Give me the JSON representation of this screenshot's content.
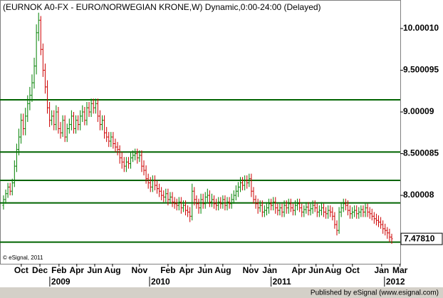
{
  "chart_data": {
    "type": "ohlc",
    "title": "(EURNOK A0-FX - EURO/NORWEGIAN KRONE,W) Dynamic,0:00-24:00 (Delayed)",
    "copyright": "© eSignal, 2011",
    "footer": "Published by eSignal (www.esignal.com)",
    "up_color": "#008000",
    "down_color": "#cc0000",
    "line_color": "#006400",
    "xlim": [
      -1.6,
      180.9
    ],
    "ylim": [
      7.18,
      10.342
    ],
    "yticks": [
      {
        "value": 10.0001,
        "label": "10.00010"
      },
      {
        "value": 9.500095,
        "label": "9.500095"
      },
      {
        "value": 9.00009,
        "label": "9.00009"
      },
      {
        "value": 8.500085,
        "label": "8.500085"
      },
      {
        "value": 8.00008,
        "label": "8.00008"
      }
    ],
    "last_price": {
      "value": 7.4781,
      "label": "7.47810"
    },
    "xticks": [
      {
        "value": 8.1,
        "label": "Oct"
      },
      {
        "value": 16.6,
        "label": "Dec"
      },
      {
        "value": 25.3,
        "label": "Feb"
      },
      {
        "value": 33.4,
        "label": "Apr"
      },
      {
        "value": 41.6,
        "label": "Jun"
      },
      {
        "value": 49.7,
        "label": "Aug"
      },
      {
        "value": 62,
        "label": "Nov"
      },
      {
        "value": 75,
        "label": "Feb"
      },
      {
        "value": 83.4,
        "label": "Apr"
      },
      {
        "value": 91.9,
        "label": "Jun"
      },
      {
        "value": 100,
        "label": "Aug"
      },
      {
        "value": 112.7,
        "label": "Nov"
      },
      {
        "value": 121.4,
        "label": "Jan"
      },
      {
        "value": 134.7,
        "label": "Apr"
      },
      {
        "value": 142.5,
        "label": "Jun"
      },
      {
        "value": 150.3,
        "label": "Aug"
      },
      {
        "value": 159.1,
        "label": "Oct"
      },
      {
        "value": 172.4,
        "label": "Jan"
      },
      {
        "value": 180.8,
        "label": "Mar"
      }
    ],
    "year_ticks": [
      {
        "value": 21.1,
        "label": "2009"
      },
      {
        "value": 66.6,
        "label": "2010"
      },
      {
        "value": 122,
        "label": "2011"
      },
      {
        "value": 173.7,
        "label": "2012"
      }
    ],
    "horizontal_lines": [
      9.146,
      8.52,
      8.18,
      7.91,
      7.44
    ],
    "open": [
      7.88,
      7.95,
      8.02,
      8.1,
      8.05,
      8.15,
      8.35,
      8.55,
      8.7,
      8.9,
      8.8,
      8.95,
      9.1,
      9.2,
      9.35,
      9.55,
      9.95,
      10.1,
      9.75,
      9.5,
      9.3,
      9.05,
      8.9,
      8.95,
      8.85,
      9.0,
      8.8,
      8.75,
      8.9,
      8.7,
      8.8,
      8.85,
      8.95,
      8.8,
      8.9,
      8.85,
      8.95,
      9.0,
      8.9,
      9.05,
      9.0,
      9.1,
      9.05,
      9.1,
      8.95,
      8.85,
      8.9,
      8.75,
      8.7,
      8.65,
      8.7,
      8.62,
      8.58,
      8.55,
      8.45,
      8.4,
      8.35,
      8.4,
      8.38,
      8.45,
      8.48,
      8.5,
      8.45,
      8.48,
      8.35,
      8.3,
      8.2,
      8.15,
      8.1,
      8.18,
      8.12,
      8.08,
      8.05,
      8.0,
      7.98,
      8.02,
      7.95,
      7.98,
      7.92,
      7.9,
      7.88,
      7.92,
      7.85,
      7.88,
      7.82,
      7.8,
      7.75,
      8.05,
      7.95,
      7.9,
      7.85,
      7.95,
      7.9,
      7.98,
      8.0,
      7.92,
      7.95,
      7.9,
      7.88,
      7.92,
      7.9,
      7.95,
      7.88,
      7.92,
      7.9,
      7.95,
      8.0,
      8.05,
      8.1,
      8.15,
      8.12,
      8.18,
      8.15,
      8.2,
      8.05,
      7.95,
      7.9,
      7.85,
      7.88,
      7.8,
      7.82,
      7.85,
      7.9,
      7.88,
      7.92,
      7.85,
      7.82,
      7.85,
      7.8,
      7.88,
      7.85,
      7.9,
      7.85,
      7.82,
      7.88,
      7.9,
      7.85,
      7.8,
      7.83,
      7.86,
      7.82,
      7.84,
      7.88,
      7.85,
      7.8,
      7.82,
      7.85,
      7.8,
      7.78,
      7.82,
      7.8,
      7.75,
      7.65,
      7.58,
      7.8,
      7.85,
      7.9,
      7.88,
      7.82,
      7.78,
      7.8,
      7.82,
      7.78,
      7.8,
      7.83,
      7.8,
      7.85,
      7.8,
      7.78,
      7.75,
      7.72,
      7.7,
      7.68,
      7.65,
      7.6,
      7.58,
      7.55,
      7.5
    ],
    "high": [
      8.0,
      8.07,
      8.15,
      8.15,
      8.2,
      8.42,
      8.62,
      8.8,
      8.98,
      8.98,
      9.05,
      9.2,
      9.3,
      9.45,
      9.65,
      10.05,
      10.19,
      10.15,
      9.82,
      9.58,
      9.38,
      9.12,
      9.02,
      9.02,
      9.08,
      9.06,
      8.88,
      8.96,
      8.96,
      8.86,
      8.92,
      9.02,
      9.0,
      8.96,
      8.96,
      9.02,
      9.08,
      9.06,
      9.12,
      9.12,
      9.16,
      9.16,
      9.16,
      9.16,
      9.02,
      8.96,
      8.96,
      8.82,
      8.76,
      8.76,
      8.76,
      8.68,
      8.64,
      8.6,
      8.52,
      8.46,
      8.46,
      8.46,
      8.52,
      8.54,
      8.56,
      8.56,
      8.54,
      8.54,
      8.42,
      8.36,
      8.26,
      8.22,
      8.24,
      8.24,
      8.18,
      8.14,
      8.1,
      8.06,
      8.08,
      8.08,
      8.04,
      8.04,
      7.98,
      7.96,
      7.98,
      7.98,
      7.94,
      7.94,
      7.88,
      7.86,
      8.14,
      8.1,
      8.0,
      7.96,
      8.02,
      8.02,
      8.04,
      8.08,
      8.06,
      8.02,
      8.0,
      7.96,
      7.98,
      7.98,
      8.0,
      8.0,
      7.98,
      7.98,
      8.02,
      8.06,
      8.12,
      8.16,
      8.22,
      8.22,
      8.24,
      8.24,
      8.26,
      8.26,
      8.1,
      8.0,
      7.96,
      7.94,
      7.94,
      7.88,
      7.92,
      7.96,
      7.96,
      7.98,
      7.98,
      7.9,
      7.9,
      7.9,
      7.94,
      7.94,
      7.96,
      7.96,
      7.9,
      7.94,
      7.96,
      7.96,
      7.9,
      7.88,
      7.92,
      7.92,
      7.9,
      7.94,
      7.94,
      7.9,
      7.88,
      7.92,
      7.9,
      7.86,
      7.88,
      7.88,
      7.86,
      7.8,
      7.7,
      7.86,
      7.92,
      7.96,
      7.96,
      7.94,
      7.88,
      7.86,
      7.88,
      7.88,
      7.86,
      7.88,
      7.88,
      7.9,
      7.9,
      7.86,
      7.84,
      7.8,
      7.78,
      7.76,
      7.74,
      7.7,
      7.66,
      7.62,
      7.6,
      7.54
    ],
    "low": [
      7.83,
      7.9,
      7.97,
      8.0,
      8.0,
      8.1,
      8.28,
      8.48,
      8.62,
      8.72,
      8.72,
      8.88,
      9.02,
      9.12,
      9.28,
      9.45,
      9.85,
      9.68,
      9.42,
      9.22,
      8.98,
      8.82,
      8.84,
      8.78,
      8.78,
      8.74,
      8.68,
      8.7,
      8.64,
      8.64,
      8.74,
      8.78,
      8.74,
      8.74,
      8.78,
      8.78,
      8.88,
      8.84,
      8.84,
      8.94,
      8.94,
      8.98,
      8.98,
      8.88,
      8.78,
      8.78,
      8.68,
      8.64,
      8.58,
      8.58,
      8.56,
      8.52,
      8.48,
      8.38,
      8.32,
      8.28,
      8.28,
      8.32,
      8.32,
      8.4,
      8.42,
      8.38,
      8.4,
      8.28,
      8.24,
      8.14,
      8.08,
      8.04,
      8.04,
      8.06,
      8.02,
      7.98,
      7.94,
      7.92,
      7.92,
      7.88,
      7.9,
      7.86,
      7.84,
      7.82,
      7.82,
      7.78,
      7.8,
      7.76,
      7.74,
      7.68,
      7.7,
      7.88,
      7.84,
      7.78,
      7.78,
      7.84,
      7.84,
      7.92,
      7.86,
      7.86,
      7.84,
      7.82,
      7.82,
      7.84,
      7.84,
      7.82,
      7.82,
      7.84,
      7.84,
      7.9,
      7.94,
      7.98,
      8.04,
      8.06,
      8.06,
      8.08,
      8.1,
      7.98,
      7.9,
      7.84,
      7.78,
      7.8,
      7.74,
      7.74,
      7.76,
      7.78,
      7.82,
      7.82,
      7.78,
      7.76,
      7.76,
      7.74,
      7.74,
      7.78,
      7.78,
      7.8,
      7.76,
      7.76,
      7.82,
      7.8,
      7.74,
      7.74,
      7.78,
      7.76,
      7.76,
      7.78,
      7.8,
      7.74,
      7.74,
      7.76,
      7.74,
      7.72,
      7.72,
      7.74,
      7.7,
      7.6,
      7.52,
      7.54,
      7.74,
      7.8,
      7.82,
      7.76,
      7.72,
      7.72,
      7.74,
      7.72,
      7.72,
      7.74,
      7.74,
      7.74,
      7.74,
      7.72,
      7.7,
      7.66,
      7.64,
      7.62,
      7.6,
      7.54,
      7.52,
      7.48,
      7.44,
      7.42
    ],
    "close": [
      7.95,
      8.02,
      8.1,
      8.05,
      8.15,
      8.35,
      8.55,
      8.7,
      8.9,
      8.8,
      8.95,
      9.1,
      9.2,
      9.35,
      9.55,
      9.95,
      10.1,
      9.75,
      9.5,
      9.3,
      9.05,
      8.9,
      8.95,
      8.85,
      9.0,
      8.8,
      8.75,
      8.9,
      8.7,
      8.8,
      8.85,
      8.95,
      8.8,
      8.9,
      8.85,
      8.95,
      9.0,
      8.9,
      9.05,
      9.0,
      9.1,
      9.05,
      9.1,
      8.95,
      8.85,
      8.9,
      8.75,
      8.7,
      8.65,
      8.7,
      8.62,
      8.58,
      8.55,
      8.45,
      8.4,
      8.35,
      8.4,
      8.38,
      8.45,
      8.48,
      8.5,
      8.45,
      8.48,
      8.35,
      8.3,
      8.2,
      8.15,
      8.1,
      8.18,
      8.12,
      8.08,
      8.05,
      8.0,
      7.98,
      8.02,
      7.95,
      7.98,
      7.92,
      7.9,
      7.88,
      7.92,
      7.85,
      7.88,
      7.82,
      7.8,
      7.75,
      8.05,
      7.95,
      7.9,
      7.85,
      7.95,
      7.9,
      7.98,
      8.0,
      7.92,
      7.95,
      7.9,
      7.88,
      7.92,
      7.9,
      7.95,
      7.88,
      7.92,
      7.9,
      7.95,
      8.0,
      8.05,
      8.1,
      8.15,
      8.12,
      8.18,
      8.15,
      8.2,
      8.05,
      7.95,
      7.9,
      7.85,
      7.88,
      7.8,
      7.82,
      7.85,
      7.9,
      7.88,
      7.92,
      7.85,
      7.82,
      7.85,
      7.8,
      7.88,
      7.85,
      7.9,
      7.85,
      7.82,
      7.88,
      7.9,
      7.85,
      7.8,
      7.83,
      7.86,
      7.82,
      7.84,
      7.88,
      7.85,
      7.8,
      7.82,
      7.85,
      7.8,
      7.78,
      7.82,
      7.8,
      7.75,
      7.65,
      7.58,
      7.8,
      7.85,
      7.9,
      7.88,
      7.82,
      7.78,
      7.8,
      7.82,
      7.78,
      7.8,
      7.83,
      7.8,
      7.85,
      7.8,
      7.78,
      7.75,
      7.72,
      7.7,
      7.68,
      7.65,
      7.6,
      7.58,
      7.55,
      7.5,
      7.48
    ]
  }
}
